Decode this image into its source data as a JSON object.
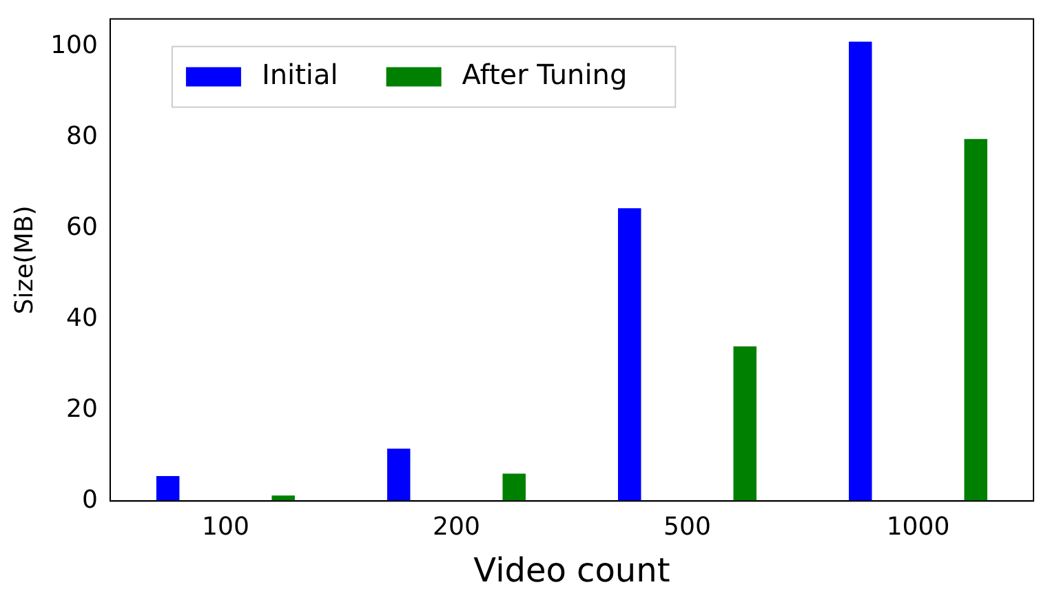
{
  "chart_data": {
    "type": "bar",
    "xlabel": "Video count",
    "ylabel": "Size(MB)",
    "categories": [
      "100",
      "200",
      "500",
      "1000"
    ],
    "series": [
      {
        "name": "Initial",
        "color": "#0000ff",
        "values": [
          5.5,
          11.5,
          64.4,
          101
        ]
      },
      {
        "name": "After Tuning",
        "color": "#008000",
        "values": [
          1.2,
          6,
          34,
          79.6
        ]
      }
    ],
    "ylim": [
      0,
      106
    ],
    "yticks": [
      0,
      20,
      40,
      60,
      80,
      100
    ],
    "grid": false,
    "legend": "top left"
  }
}
